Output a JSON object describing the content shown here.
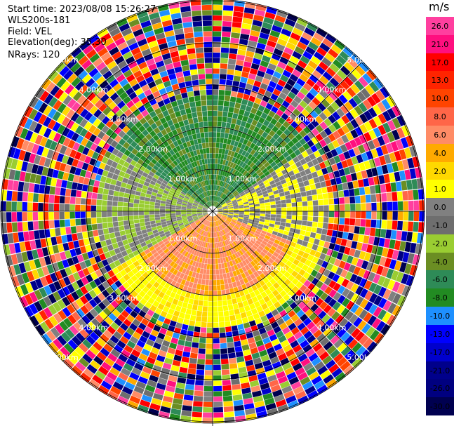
{
  "header": {
    "start_time": "Start time: 2023/08/08 15:26:27",
    "instrument": "WLS200s-181",
    "field": "Field: VEL",
    "elevation": "Elevation(deg): 35.30",
    "nrays": "NRays: 120"
  },
  "colorbar": {
    "unit": "m/s",
    "ticks": [
      "26.0",
      "21.0",
      "17.0",
      "13.0",
      "10.0",
      "8.0",
      "6.0",
      "4.0",
      "2.0",
      "1.0",
      "0.0",
      "-1.0",
      "-2.0",
      "-4.0",
      "-6.0",
      "-8.0",
      "-10.0",
      "-13.0",
      "-17.0",
      "-21.0",
      "-26.0",
      "-30.0"
    ],
    "colors": [
      "#ff3f9f",
      "#ff0f7f",
      "#ff0000",
      "#ff2400",
      "#ff4400",
      "#ff6648",
      "#ff8c66",
      "#ffaa00",
      "#ffd800",
      "#ffff00",
      "#808080",
      "#6e6e6e",
      "#9acd32",
      "#6b8e23",
      "#2e8b57",
      "#228b22",
      "#1e90ff",
      "#0000ff",
      "#0000cd",
      "#00008b",
      "#000080",
      "#000050"
    ]
  },
  "chart_data": {
    "type": "ppi",
    "nrays": 120,
    "elevation_deg": 35.3,
    "field": "VEL",
    "range_rings_km": [
      "1.00km",
      "2.00km",
      "3.00km",
      "4.00km",
      "5.00km"
    ],
    "range_max_km": 5.5,
    "colorbar_ticks": [
      26.0,
      21.0,
      17.0,
      13.0,
      10.0,
      8.0,
      6.0,
      4.0,
      2.0,
      1.0,
      0.0,
      -1.0,
      -2.0,
      -4.0,
      -6.0,
      -8.0,
      -10.0,
      -13.0,
      -17.0,
      -21.0,
      -26.0,
      -30.0
    ],
    "near_field_pattern": {
      "north_sector": "green (-4 to -8 m/s)",
      "south_sector": "orange/yellow (+2 to +10 m/s)",
      "east_west": "gray/olive (~0 m/s)"
    },
    "far_field": "noise beyond ~2.7 km"
  }
}
